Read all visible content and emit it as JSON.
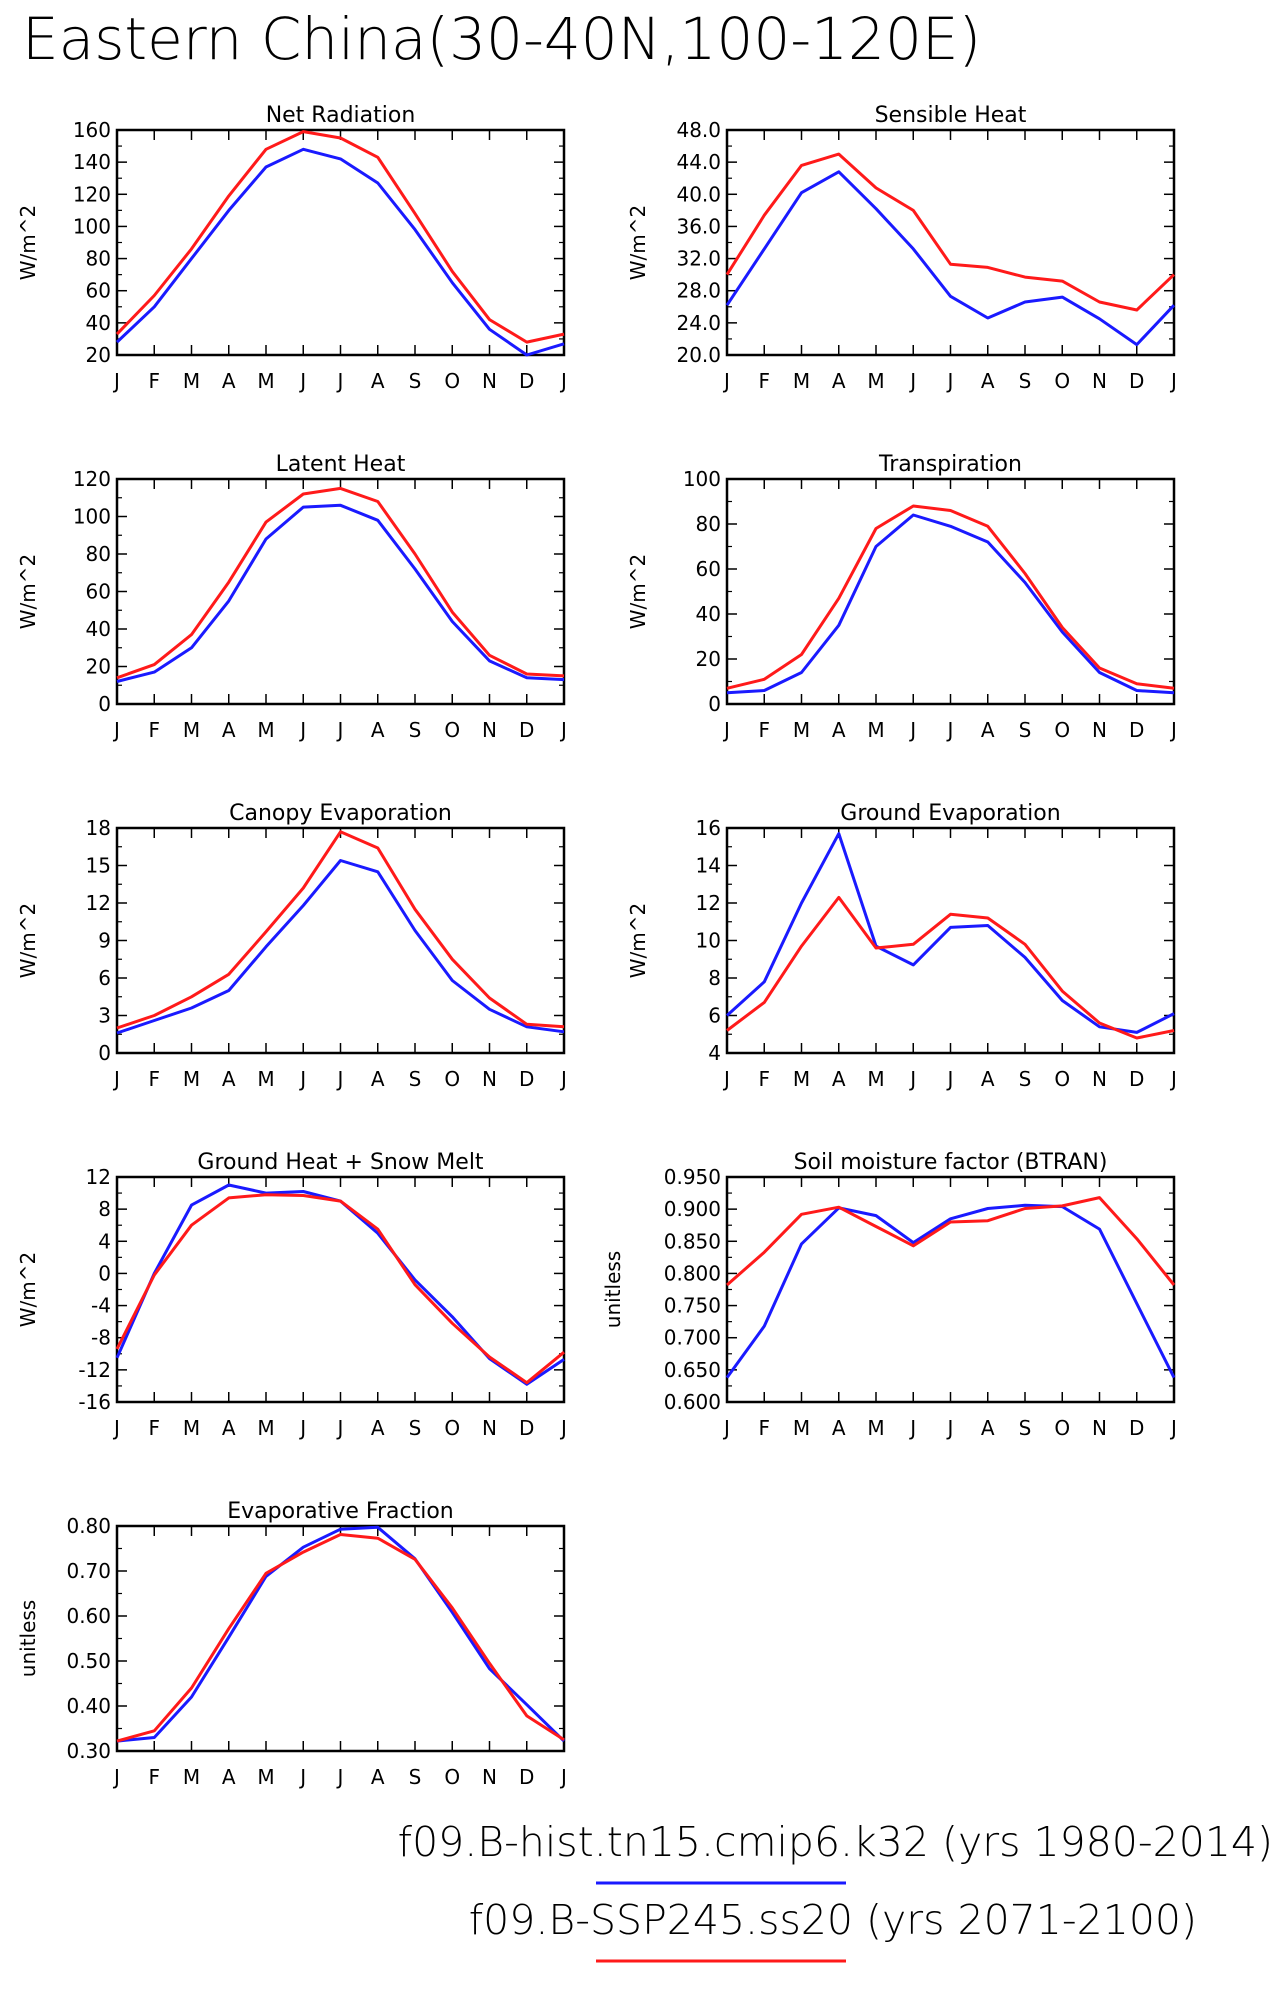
{
  "title": "Eastern China(30-40N,100-120E)",
  "legend": [
    {
      "label": "f09.B-hist.tn15.cmip6.k32 (yrs 1980-2014)",
      "color": "#1a1aff"
    },
    {
      "label": "f09.B-SSP245.ss20 (yrs 2071-2100)",
      "color": "#ff1a1a"
    }
  ],
  "chart_data": [
    {
      "type": "line",
      "title": "Net Radiation",
      "ylabel": "W/m^2",
      "categories": [
        "J",
        "F",
        "M",
        "A",
        "M",
        "J",
        "J",
        "A",
        "S",
        "O",
        "N",
        "D",
        "J"
      ],
      "ylim": [
        20,
        160
      ],
      "yticks": [
        "20",
        "40",
        "60",
        "80",
        "100",
        "120",
        "140",
        "160"
      ],
      "series": [
        {
          "values": [
            28,
            50,
            80,
            110,
            137,
            148,
            142,
            127,
            98,
            65,
            36,
            20,
            27
          ]
        },
        {
          "values": [
            33,
            57,
            86,
            119,
            148,
            159,
            155,
            143,
            108,
            72,
            42,
            28,
            33
          ]
        }
      ]
    },
    {
      "type": "line",
      "title": "Sensible Heat",
      "ylabel": "W/m^2",
      "categories": [
        "J",
        "F",
        "M",
        "A",
        "M",
        "J",
        "J",
        "A",
        "S",
        "O",
        "N",
        "D",
        "J"
      ],
      "ylim": [
        20,
        48
      ],
      "yticks": [
        "20.0",
        "24.0",
        "28.0",
        "32.0",
        "36.0",
        "40.0",
        "44.0",
        "48.0"
      ],
      "series": [
        {
          "values": [
            26.2,
            33.2,
            40.2,
            42.8,
            38.2,
            33.2,
            27.3,
            24.6,
            26.6,
            27.2,
            24.5,
            21.3,
            26.2
          ]
        },
        {
          "values": [
            30.0,
            37.4,
            43.6,
            45.0,
            40.8,
            38.0,
            31.3,
            30.9,
            29.7,
            29.2,
            26.6,
            25.6,
            30.0
          ]
        }
      ]
    },
    {
      "type": "line",
      "title": "Latent Heat",
      "ylabel": "W/m^2",
      "categories": [
        "J",
        "F",
        "M",
        "A",
        "M",
        "J",
        "J",
        "A",
        "S",
        "O",
        "N",
        "D",
        "J"
      ],
      "ylim": [
        0,
        120
      ],
      "yticks": [
        "0",
        "20",
        "40",
        "60",
        "80",
        "100",
        "120"
      ],
      "series": [
        {
          "values": [
            12,
            17,
            30,
            55,
            88,
            105,
            106,
            98,
            72,
            44,
            23,
            14,
            13
          ]
        },
        {
          "values": [
            14,
            21,
            37,
            65,
            97,
            112,
            115,
            108,
            80,
            49,
            26,
            16,
            15
          ]
        }
      ]
    },
    {
      "type": "line",
      "title": "Transpiration",
      "ylabel": "W/m^2",
      "categories": [
        "J",
        "F",
        "M",
        "A",
        "M",
        "J",
        "J",
        "A",
        "S",
        "O",
        "N",
        "D",
        "J"
      ],
      "ylim": [
        0,
        100
      ],
      "yticks": [
        "0",
        "20",
        "40",
        "60",
        "80",
        "100"
      ],
      "series": [
        {
          "values": [
            5,
            6,
            14,
            35,
            70,
            84,
            79,
            72,
            54,
            32,
            14,
            6,
            5
          ]
        },
        {
          "values": [
            7,
            11,
            22,
            47,
            78,
            88,
            86,
            79,
            58,
            34,
            16,
            9,
            7
          ]
        }
      ]
    },
    {
      "type": "line",
      "title": "Canopy Evaporation",
      "ylabel": "W/m^2",
      "categories": [
        "J",
        "F",
        "M",
        "A",
        "M",
        "J",
        "J",
        "A",
        "S",
        "O",
        "N",
        "D",
        "J"
      ],
      "ylim": [
        0,
        18
      ],
      "yticks": [
        "0",
        "3",
        "6",
        "9",
        "12",
        "15",
        "18"
      ],
      "series": [
        {
          "values": [
            1.6,
            2.6,
            3.6,
            5.0,
            8.5,
            11.8,
            15.4,
            14.5,
            9.8,
            5.8,
            3.5,
            2.1,
            1.7
          ]
        },
        {
          "values": [
            2.0,
            3.0,
            4.5,
            6.3,
            9.7,
            13.2,
            17.7,
            16.4,
            11.5,
            7.5,
            4.4,
            2.3,
            2.1
          ]
        }
      ]
    },
    {
      "type": "line",
      "title": "Ground Evaporation",
      "ylabel": "W/m^2",
      "categories": [
        "J",
        "F",
        "M",
        "A",
        "M",
        "J",
        "J",
        "A",
        "S",
        "O",
        "N",
        "D",
        "J"
      ],
      "ylim": [
        4,
        16
      ],
      "yticks": [
        "4",
        "6",
        "8",
        "10",
        "12",
        "14",
        "16"
      ],
      "series": [
        {
          "values": [
            6.0,
            7.8,
            12.0,
            15.7,
            9.7,
            8.7,
            10.7,
            10.8,
            9.1,
            6.8,
            5.4,
            5.1,
            6.1
          ]
        },
        {
          "values": [
            5.2,
            6.7,
            9.7,
            12.3,
            9.6,
            9.8,
            11.4,
            11.2,
            9.8,
            7.3,
            5.6,
            4.8,
            5.2
          ]
        }
      ]
    },
    {
      "type": "line",
      "title": "Ground Heat + Snow Melt",
      "ylabel": "W/m^2",
      "categories": [
        "J",
        "F",
        "M",
        "A",
        "M",
        "J",
        "J",
        "A",
        "S",
        "O",
        "N",
        "D",
        "J"
      ],
      "ylim": [
        -16,
        12
      ],
      "yticks": [
        "-16",
        "-12",
        "-8",
        "-4",
        "0",
        "4",
        "8",
        "12"
      ],
      "series": [
        {
          "values": [
            -10.5,
            0.0,
            8.5,
            11.0,
            10.0,
            10.2,
            9.0,
            5.0,
            -0.8,
            -5.4,
            -10.6,
            -13.8,
            -10.7
          ]
        },
        {
          "values": [
            -9.4,
            -0.2,
            6.0,
            9.4,
            9.8,
            9.7,
            9.0,
            5.5,
            -1.4,
            -6.2,
            -10.4,
            -13.6,
            -9.8
          ]
        }
      ]
    },
    {
      "type": "line",
      "title": "Soil moisture factor (BTRAN)",
      "ylabel": "unitless",
      "categories": [
        "J",
        "F",
        "M",
        "A",
        "M",
        "J",
        "J",
        "A",
        "S",
        "O",
        "N",
        "D",
        "J"
      ],
      "ylim": [
        0.6,
        0.95
      ],
      "yticks": [
        "0.600",
        "0.650",
        "0.700",
        "0.750",
        "0.800",
        "0.850",
        "0.900",
        "0.950"
      ],
      "series": [
        {
          "values": [
            0.638,
            0.718,
            0.846,
            0.902,
            0.89,
            0.848,
            0.885,
            0.901,
            0.906,
            0.904,
            0.869,
            0.753,
            0.638
          ]
        },
        {
          "values": [
            0.782,
            0.833,
            0.892,
            0.903,
            0.873,
            0.843,
            0.88,
            0.882,
            0.901,
            0.905,
            0.918,
            0.854,
            0.782
          ]
        }
      ]
    },
    {
      "type": "line",
      "title": "Evaporative Fraction",
      "ylabel": "unitless",
      "categories": [
        "J",
        "F",
        "M",
        "A",
        "M",
        "J",
        "J",
        "A",
        "S",
        "O",
        "N",
        "D",
        "J"
      ],
      "ylim": [
        0.3,
        0.8
      ],
      "yticks": [
        "0.30",
        "0.40",
        "0.50",
        "0.60",
        "0.70",
        "0.80"
      ],
      "series": [
        {
          "values": [
            0.322,
            0.33,
            0.42,
            0.553,
            0.688,
            0.753,
            0.793,
            0.797,
            0.727,
            0.608,
            0.483,
            0.403,
            0.322
          ]
        },
        {
          "values": [
            0.322,
            0.345,
            0.44,
            0.572,
            0.695,
            0.742,
            0.781,
            0.773,
            0.726,
            0.618,
            0.495,
            0.378,
            0.325
          ]
        }
      ]
    }
  ]
}
